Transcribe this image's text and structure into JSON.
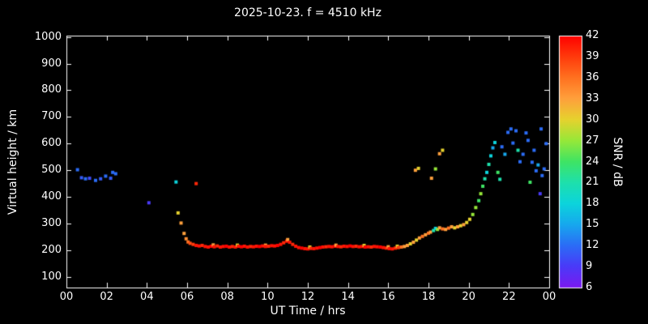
{
  "chart_data": {
    "type": "scatter",
    "title": "2025-10-23. f = 4510 kHz",
    "xlabel": "UT Time / hrs",
    "ylabel": "Virtual height / km",
    "colorbar_label": "SNR / dB",
    "background": "#000000",
    "axis_color": "#ffffff",
    "grid": false,
    "xlim": [
      0,
      24
    ],
    "ylim": [
      60,
      1005
    ],
    "xtick_values": [
      0,
      2,
      4,
      6,
      8,
      10,
      12,
      14,
      16,
      18,
      20,
      22,
      24
    ],
    "xtick_labels": [
      "00",
      "02",
      "04",
      "06",
      "08",
      "10",
      "12",
      "14",
      "16",
      "18",
      "20",
      "22",
      "00"
    ],
    "ytick_values": [
      100,
      200,
      300,
      400,
      500,
      600,
      700,
      800,
      900,
      1000
    ],
    "ytick_labels": [
      "100",
      "200",
      "300",
      "400",
      "500",
      "600",
      "700",
      "800",
      "900",
      "1000"
    ],
    "colorbar": {
      "min": 6,
      "max": 42,
      "ticks": [
        6,
        9,
        12,
        15,
        18,
        21,
        24,
        27,
        30,
        33,
        36,
        39,
        42
      ],
      "stops": [
        [
          6,
          "#7b1af0"
        ],
        [
          9,
          "#4a3af8"
        ],
        [
          12,
          "#2b6cf6"
        ],
        [
          15,
          "#17a8ee"
        ],
        [
          18,
          "#0cd4dc"
        ],
        [
          21,
          "#1ee0ac"
        ],
        [
          24,
          "#3fe464"
        ],
        [
          27,
          "#97e839"
        ],
        [
          30,
          "#e6d22e"
        ],
        [
          33,
          "#ffa03c"
        ],
        [
          36,
          "#ff7120"
        ],
        [
          39,
          "#ff3a0c"
        ],
        [
          42,
          "#ff0000"
        ]
      ]
    },
    "points": [
      [
        0.55,
        502,
        12
      ],
      [
        0.75,
        472,
        11
      ],
      [
        0.95,
        468,
        12
      ],
      [
        1.15,
        470,
        10
      ],
      [
        1.45,
        462,
        12
      ],
      [
        1.7,
        468,
        11
      ],
      [
        1.95,
        478,
        12
      ],
      [
        2.2,
        470,
        11
      ],
      [
        2.3,
        492,
        12
      ],
      [
        2.45,
        487,
        12
      ],
      [
        4.1,
        378,
        9
      ],
      [
        5.45,
        456,
        18
      ],
      [
        5.55,
        340,
        30
      ],
      [
        5.7,
        302,
        33
      ],
      [
        5.85,
        263,
        33
      ],
      [
        5.95,
        243,
        34
      ],
      [
        6.05,
        231,
        36
      ],
      [
        6.15,
        226,
        38
      ],
      [
        6.45,
        450,
        40
      ],
      [
        6.3,
        222,
        39
      ],
      [
        6.45,
        218,
        41
      ],
      [
        6.6,
        216,
        41
      ],
      [
        6.75,
        218,
        40
      ],
      [
        6.9,
        214,
        41
      ],
      [
        7.05,
        212,
        41
      ],
      [
        7.2,
        215,
        42
      ],
      [
        7.3,
        220,
        33
      ],
      [
        7.35,
        213,
        41
      ],
      [
        7.5,
        216,
        40
      ],
      [
        7.65,
        212,
        41
      ],
      [
        7.8,
        214,
        41
      ],
      [
        7.95,
        215,
        42
      ],
      [
        8.1,
        212,
        41
      ],
      [
        8.25,
        214,
        40
      ],
      [
        8.4,
        212,
        41
      ],
      [
        8.5,
        219,
        30
      ],
      [
        8.55,
        215,
        41
      ],
      [
        8.7,
        213,
        42
      ],
      [
        8.85,
        215,
        41
      ],
      [
        9.0,
        212,
        41
      ],
      [
        9.15,
        214,
        40
      ],
      [
        9.3,
        213,
        41
      ],
      [
        9.45,
        215,
        41
      ],
      [
        9.6,
        214,
        42
      ],
      [
        9.75,
        216,
        41
      ],
      [
        9.9,
        219,
        33
      ],
      [
        9.9,
        214,
        41
      ],
      [
        10.05,
        215,
        40
      ],
      [
        10.2,
        217,
        41
      ],
      [
        10.35,
        216,
        41
      ],
      [
        10.5,
        218,
        42
      ],
      [
        10.65,
        222,
        41
      ],
      [
        10.8,
        228,
        40
      ],
      [
        10.95,
        234,
        41
      ],
      [
        11.0,
        240,
        33
      ],
      [
        11.1,
        230,
        41
      ],
      [
        11.25,
        222,
        40
      ],
      [
        11.4,
        215,
        41
      ],
      [
        11.55,
        210,
        41
      ],
      [
        11.7,
        208,
        42
      ],
      [
        11.85,
        206,
        41
      ],
      [
        12.0,
        205,
        41
      ],
      [
        12.1,
        212,
        30
      ],
      [
        12.15,
        207,
        40
      ],
      [
        12.3,
        206,
        41
      ],
      [
        12.45,
        208,
        41
      ],
      [
        12.6,
        210,
        42
      ],
      [
        12.75,
        212,
        41
      ],
      [
        12.9,
        213,
        40
      ],
      [
        13.05,
        214,
        41
      ],
      [
        13.2,
        213,
        41
      ],
      [
        13.35,
        215,
        42
      ],
      [
        13.4,
        219,
        33
      ],
      [
        13.5,
        214,
        41
      ],
      [
        13.65,
        213,
        40
      ],
      [
        13.8,
        215,
        41
      ],
      [
        13.95,
        214,
        41
      ],
      [
        14.1,
        216,
        42
      ],
      [
        14.25,
        214,
        41
      ],
      [
        14.4,
        215,
        40
      ],
      [
        14.55,
        213,
        41
      ],
      [
        14.7,
        214,
        41
      ],
      [
        14.8,
        218,
        30
      ],
      [
        14.85,
        212,
        42
      ],
      [
        15.0,
        213,
        41
      ],
      [
        15.15,
        212,
        40
      ],
      [
        15.3,
        214,
        41
      ],
      [
        15.45,
        213,
        41
      ],
      [
        15.6,
        212,
        42
      ],
      [
        15.75,
        210,
        41
      ],
      [
        15.9,
        208,
        40
      ],
      [
        16.0,
        213,
        33
      ],
      [
        16.05,
        206,
        41
      ],
      [
        16.2,
        205,
        41
      ],
      [
        16.35,
        208,
        40
      ],
      [
        16.45,
        215,
        30
      ],
      [
        16.5,
        210,
        39
      ],
      [
        16.65,
        212,
        36
      ],
      [
        16.8,
        214,
        33
      ],
      [
        16.95,
        218,
        33
      ],
      [
        17.1,
        224,
        30
      ],
      [
        17.25,
        230,
        33
      ],
      [
        17.4,
        238,
        30
      ],
      [
        17.55,
        246,
        33
      ],
      [
        17.7,
        252,
        36
      ],
      [
        17.85,
        258,
        33
      ],
      [
        18.0,
        264,
        36
      ],
      [
        18.1,
        268,
        33
      ],
      [
        18.25,
        274,
        21
      ],
      [
        18.35,
        282,
        18
      ],
      [
        18.45,
        278,
        27
      ],
      [
        18.55,
        284,
        33
      ],
      [
        18.7,
        280,
        36
      ],
      [
        18.85,
        278,
        33
      ],
      [
        19.0,
        283,
        36
      ],
      [
        19.15,
        288,
        33
      ],
      [
        19.3,
        284,
        30
      ],
      [
        19.45,
        288,
        33
      ],
      [
        19.6,
        292,
        30
      ],
      [
        19.75,
        296,
        33
      ],
      [
        19.9,
        304,
        30
      ],
      [
        20.05,
        316,
        30
      ],
      [
        20.2,
        334,
        27
      ],
      [
        20.35,
        360,
        27
      ],
      [
        20.5,
        386,
        24
      ],
      [
        20.6,
        412,
        27
      ],
      [
        20.7,
        440,
        24
      ],
      [
        20.8,
        468,
        21
      ],
      [
        20.9,
        492,
        18
      ],
      [
        21.0,
        522,
        21
      ],
      [
        21.1,
        554,
        18
      ],
      [
        21.2,
        584,
        15
      ],
      [
        21.3,
        604,
        18
      ],
      [
        17.35,
        500,
        33
      ],
      [
        17.5,
        507,
        30
      ],
      [
        18.15,
        470,
        33
      ],
      [
        18.35,
        505,
        27
      ],
      [
        18.55,
        562,
        33
      ],
      [
        18.7,
        575,
        30
      ],
      [
        21.45,
        492,
        24
      ],
      [
        21.55,
        466,
        21
      ],
      [
        21.65,
        588,
        12
      ],
      [
        21.8,
        560,
        15
      ],
      [
        21.95,
        642,
        12
      ],
      [
        22.1,
        655,
        12
      ],
      [
        22.2,
        602,
        12
      ],
      [
        22.35,
        648,
        12
      ],
      [
        22.45,
        575,
        21
      ],
      [
        22.55,
        532,
        12
      ],
      [
        22.7,
        560,
        12
      ],
      [
        22.85,
        640,
        12
      ],
      [
        22.95,
        612,
        12
      ],
      [
        23.05,
        455,
        24
      ],
      [
        23.15,
        530,
        12
      ],
      [
        23.25,
        575,
        12
      ],
      [
        23.35,
        498,
        12
      ],
      [
        23.45,
        520,
        15
      ],
      [
        23.55,
        412,
        9
      ],
      [
        23.6,
        655,
        12
      ],
      [
        23.65,
        480,
        12
      ],
      [
        23.75,
        505,
        12
      ],
      [
        23.85,
        600,
        12
      ]
    ]
  }
}
